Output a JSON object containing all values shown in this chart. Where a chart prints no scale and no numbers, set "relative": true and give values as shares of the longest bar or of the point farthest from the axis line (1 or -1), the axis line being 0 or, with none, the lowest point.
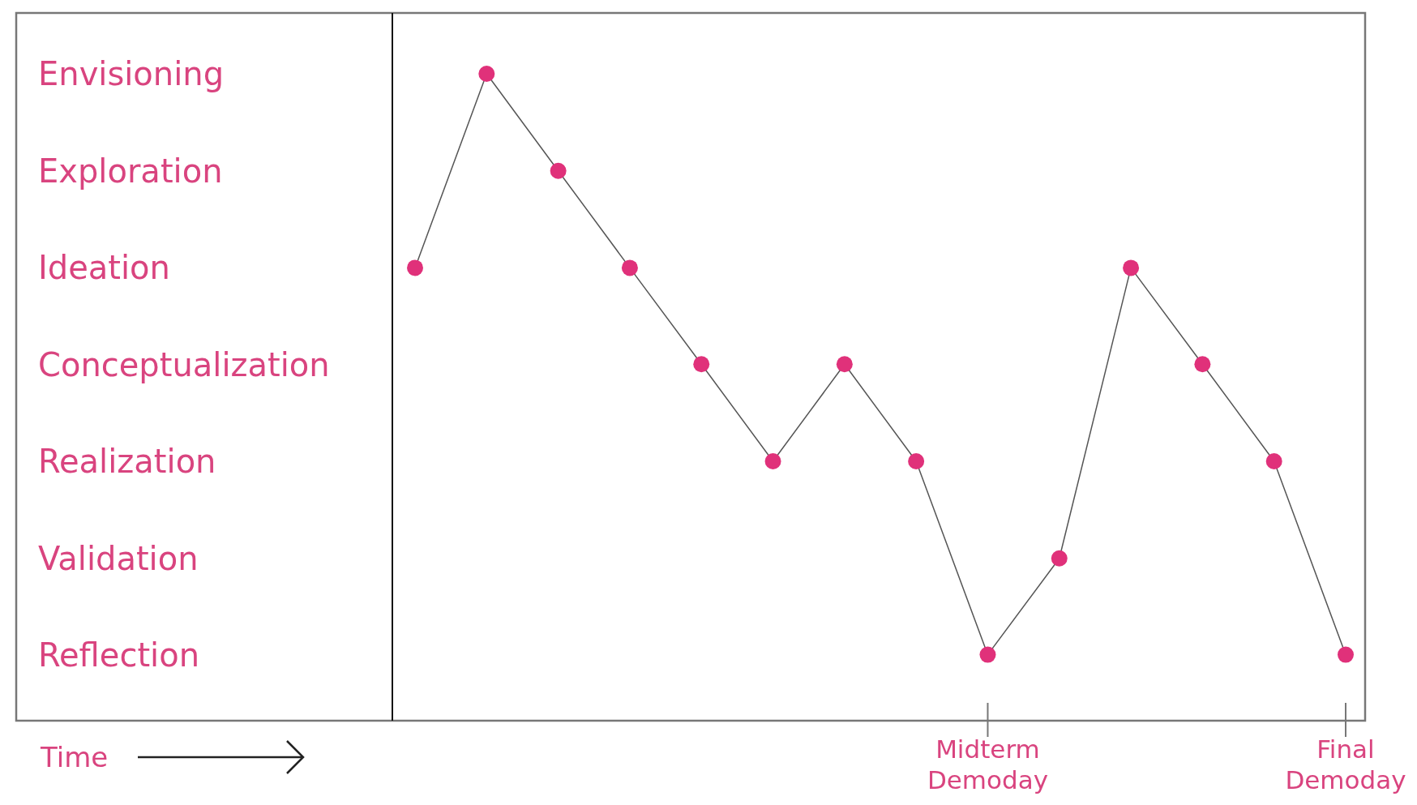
{
  "chart_data": {
    "type": "line",
    "relative": true,
    "categories": [
      null,
      null,
      null,
      null,
      null,
      null,
      null,
      null,
      "Midterm\nDemoday",
      null,
      null,
      null,
      null,
      "Final\nDemoday"
    ],
    "series": [
      {
        "color": "#e0317a",
        "values": [
          0.7,
          1,
          0.85,
          0.7,
          0.551,
          0.401,
          0.551,
          0.401,
          0.102,
          0.251,
          0.7,
          0.551,
          0.401,
          0.102
        ]
      }
    ],
    "marker": "circle",
    "line_style": "solid",
    "grid": false,
    "annotations": [
      "Time",
      "Envisioning",
      "Exploration",
      "Ideation",
      "Conceptualization",
      "Realization",
      "Validation",
      "Reflection"
    ]
  }
}
